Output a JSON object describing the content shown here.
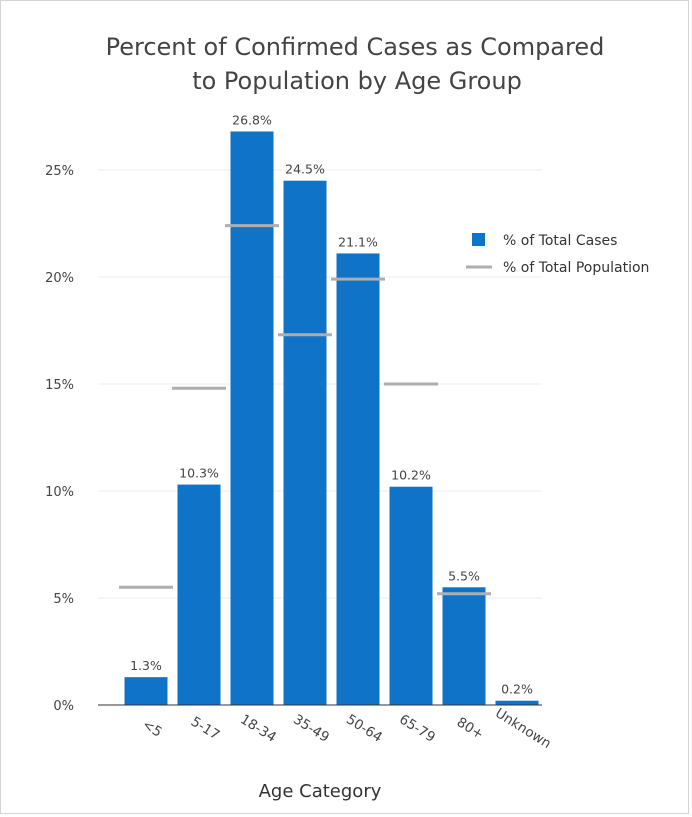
{
  "chart_data": {
    "type": "bar",
    "title_lines": [
      "Percent of Confirmed Cases as Compared",
      "to Population by Age Group"
    ],
    "xlabel": "Age Category",
    "ylabel": "",
    "categories": [
      "<5",
      "5-17",
      "18-34",
      "35-49",
      "50-64",
      "65-79",
      "80+",
      "Unknown"
    ],
    "series": [
      {
        "name": "% of Total Cases",
        "kind": "bar",
        "color": "#0F73C8",
        "values": [
          1.3,
          10.3,
          26.8,
          24.5,
          21.1,
          10.2,
          5.5,
          0.2
        ],
        "labels": [
          "1.3%",
          "10.3%",
          "26.8%",
          "24.5%",
          "21.1%",
          "10.2%",
          "5.5%",
          "0.2%"
        ]
      },
      {
        "name": "% of Total Population",
        "kind": "marker",
        "color": "#AEAEAE",
        "values": [
          5.5,
          14.8,
          22.4,
          17.3,
          19.9,
          15.0,
          5.2,
          null
        ]
      }
    ],
    "ylim": [
      0,
      25
    ],
    "yticks": [
      0,
      5,
      10,
      15,
      20,
      25
    ],
    "ytick_labels": [
      "0%",
      "5%",
      "10%",
      "15%",
      "20%",
      "25%"
    ],
    "grid": true,
    "legend": "right"
  }
}
